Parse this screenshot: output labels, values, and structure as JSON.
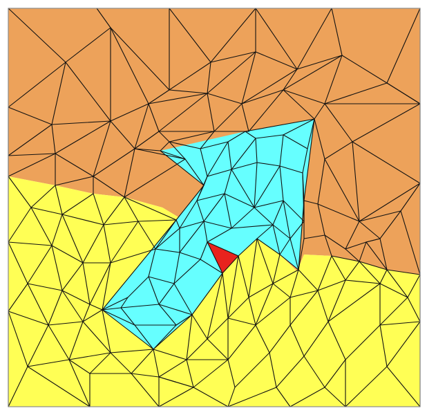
{
  "figure": {
    "kind": "triangulated-mesh-domain",
    "regions": [
      {
        "id": "upper-region",
        "color": "#EDA25A"
      },
      {
        "id": "lower-region",
        "color": "#FFFF55"
      },
      {
        "id": "arrow-region",
        "color": "#66FFFF"
      },
      {
        "id": "marked-element",
        "color": "#E8231E"
      }
    ],
    "edge_color": "#111111",
    "frame_color": "#8a8a8a"
  }
}
